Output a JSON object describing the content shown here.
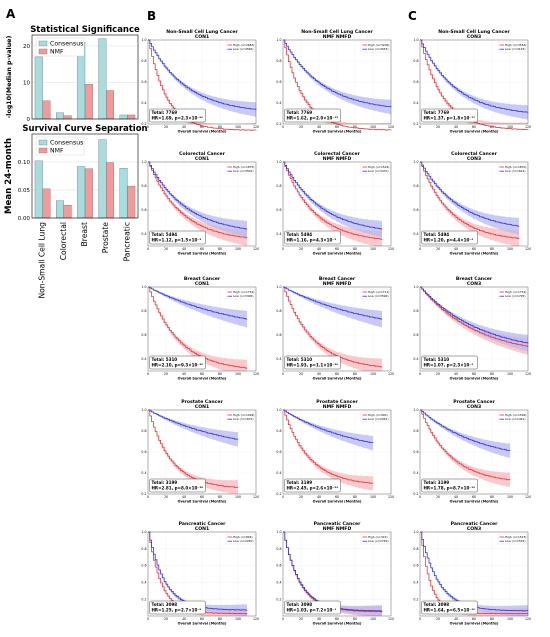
{
  "panel_letters": [
    "A",
    "B",
    "C"
  ],
  "colors": {
    "consensus": "#a8dde0",
    "nmf": "#f29a9a",
    "high": "#e8303a",
    "low": "#2a2fd6",
    "high_band": "#f7b7ba",
    "low_band": "#b6b8f2"
  },
  "chart_data": [
    {
      "type": "bar",
      "title": "Statistical Significance",
      "ylabel": "-log10(Median p-value)",
      "categories": [
        "Non-Small Cell Lung",
        "Colorectal",
        "Breast",
        "Prostate",
        "Pancreatic"
      ],
      "series": [
        {
          "name": "Consensus",
          "values": [
            17,
            1.7,
            21,
            22,
            1.1
          ]
        },
        {
          "name": "NMF",
          "values": [
            5,
            0.9,
            9.5,
            7.8,
            1.1
          ]
        }
      ],
      "ylim": [
        0,
        23
      ],
      "yticks": [
        "0",
        "10",
        "20"
      ],
      "legend": "top-center",
      "grid": true
    },
    {
      "type": "bar",
      "title": "Survival Curve Separation",
      "ylabel": "Mean 24-month",
      "categories": [
        "Non-Small Cell Lung",
        "Colorectal",
        "Breast",
        "Prostate",
        "Pancreatic"
      ],
      "series": [
        {
          "name": "Consensus",
          "values": [
            0.102,
            0.031,
            0.092,
            0.14,
            0.089
          ]
        },
        {
          "name": "NMF",
          "values": [
            0.052,
            0.023,
            0.088,
            0.099,
            0.057
          ]
        }
      ],
      "ylim": [
        0,
        0.15
      ],
      "yticks": [
        "0.00",
        "0.05",
        "0.10"
      ],
      "legend": "top-center",
      "grid": true
    },
    {
      "type": "line",
      "subtype": "kaplan-meier-grid",
      "xlabel": "Overall Survival (Months)",
      "xlim": [
        0,
        120
      ],
      "xticks": [
        "0",
        "20",
        "40",
        "60",
        "80",
        "100",
        "120"
      ],
      "yticks": [
        "0.2",
        "0.4",
        "0.6",
        "0.8",
        "1.0"
      ],
      "series_names": [
        "High",
        "Low"
      ],
      "panels": [
        {
          "col": "B1",
          "cancer": "Non-Small Cell Lung Cancer",
          "cond": "CON1",
          "leg_high": "High (n=2683)",
          "leg_low": "Low (n=4566)",
          "total": "Total: 7769",
          "hr": "HR=1.69, p=2.3×10⁻⁵⁰",
          "xmax": 120,
          "ymin": 0.2,
          "high_end": 0.14,
          "low_end": 0.3,
          "high_k": 0.05,
          "low_k": 0.024
        },
        {
          "col": "B2",
          "cancer": "Non-Small Cell Lung Cancer",
          "cond": "NMF NMFD",
          "leg_high": "High (n=3206)",
          "leg_low": "Low (n=4563)",
          "total": "Total: 7769",
          "hr": "HR=1.62, p=2.0×10⁻¹²",
          "xmax": 120,
          "ymin": 0.2,
          "high_end": 0.14,
          "low_end": 0.32,
          "high_k": 0.045,
          "low_k": 0.023
        },
        {
          "col": "C",
          "cancer": "Non-Small Cell Lung Cancer",
          "cond": "CON3",
          "leg_high": "High (n=3564)",
          "leg_low": "Low (n=4145)",
          "total": "Total: 7769",
          "hr": "HR=1.37, p=1.8×10⁻¹⁷",
          "xmax": 120,
          "ymin": 0.2,
          "high_end": 0.14,
          "low_end": 0.28,
          "high_k": 0.04,
          "low_k": 0.026
        },
        {
          "col": "B1",
          "cancer": "Colorectal Cancer",
          "cond": "CON1",
          "leg_high": "High (n=1875)",
          "leg_low": "Low (n=3502)",
          "total": "Total: 5494",
          "hr": "HR=1.12, p=1.5×10⁻²",
          "xmax": 110,
          "ymin": 0.3,
          "high_end": 0.34,
          "low_end": 0.4,
          "high_k": 0.028,
          "low_k": 0.024
        },
        {
          "col": "B2",
          "cancer": "Colorectal Cancer",
          "cond": "NMF NMFD",
          "leg_high": "High (n=1524)",
          "leg_low": "Low (n=3470)",
          "total": "Total: 5494",
          "hr": "HR=1.16, p=4.3×10⁻³",
          "xmax": 110,
          "ymin": 0.3,
          "high_end": 0.33,
          "low_end": 0.4,
          "high_k": 0.029,
          "low_k": 0.024
        },
        {
          "col": "C",
          "cancer": "Colorectal Cancer",
          "cond": "CON3",
          "leg_high": "High (n=1870)",
          "leg_low": "Low (n=1624)",
          "total": "Total: 5494",
          "hr": "HR=1.20, p=4.4×10⁻⁴",
          "xmax": 110,
          "ymin": 0.3,
          "high_end": 0.34,
          "low_end": 0.42,
          "high_k": 0.03,
          "low_k": 0.023
        },
        {
          "col": "B1",
          "cancer": "Breast Cancer",
          "cond": "CON1",
          "leg_high": "High (n=1752)",
          "leg_low": "Low (n=3306)",
          "total": "Total: 5310",
          "hr": "HR=2.10, p=9.3×10⁻³⁰",
          "xmax": 110,
          "ymin": 0.3,
          "high_end": 0.3,
          "low_end": 0.6,
          "high_k": 0.03,
          "low_k": 0.01
        },
        {
          "col": "B2",
          "cancer": "Breast Cancer",
          "cond": "NMF NMFD",
          "leg_high": "High (n=1711)",
          "leg_low": "Low (n=3596)",
          "total": "Total: 5310",
          "hr": "HR=1.93, p=1.1×10⁻²⁶",
          "xmax": 110,
          "ymin": 0.3,
          "high_end": 0.31,
          "low_end": 0.6,
          "high_k": 0.03,
          "low_k": 0.01
        },
        {
          "col": "C",
          "cancer": "Breast Cancer",
          "cond": "CON3",
          "leg_high": "High (n=1752)",
          "leg_low": "Low (n=1795)",
          "total": "Total: 5310",
          "hr": "HR=1.07, p=2.3×10⁻¹",
          "xmax": 120,
          "ymin": 0.3,
          "high_end": 0.42,
          "low_end": 0.44,
          "high_k": 0.016,
          "low_k": 0.015
        },
        {
          "col": "B1",
          "cancer": "Prostate Cancer",
          "cond": "CON1",
          "leg_high": "High (n=1099)",
          "leg_low": "Low (n=1676)",
          "total": "Total: 3199",
          "hr": "HR=2.81, p=8.0×10⁻³⁸",
          "xmax": 100,
          "ymin": 0.2,
          "high_end": 0.25,
          "low_end": 0.58,
          "high_k": 0.04,
          "low_k": 0.011
        },
        {
          "col": "B2",
          "cancer": "Prostate Cancer",
          "cond": "NMF NMFD",
          "leg_high": "High (n=900)",
          "leg_low": "Low (n=2061)",
          "total": "Total: 3199",
          "hr": "HR=2.45, p=2.6×10⁻³⁴",
          "xmax": 100,
          "ymin": 0.2,
          "high_end": 0.28,
          "low_end": 0.55,
          "high_k": 0.035,
          "low_k": 0.012
        },
        {
          "col": "C",
          "cancer": "Prostate Cancer",
          "cond": "CON3",
          "leg_high": "High (n=1599)",
          "leg_low": "Low (n=1461)",
          "total": "Total: 3199",
          "hr": "HR=1.78, p=8.7×10⁻¹⁵",
          "xmax": 100,
          "ymin": 0.2,
          "high_end": 0.3,
          "low_end": 0.5,
          "high_k": 0.03,
          "low_k": 0.015
        },
        {
          "col": "B1",
          "cancer": "Pancreatic Cancer",
          "cond": "CON1",
          "leg_high": "High (n=846)",
          "leg_low": "Low (n=2250)",
          "total": "Total: 3098",
          "hr": "HR=1.25, p=2.7×10⁻⁵",
          "xmax": 110,
          "ymin": 0.0,
          "high_end": 0.03,
          "low_end": 0.07,
          "high_k": 0.07,
          "low_k": 0.055
        },
        {
          "col": "B2",
          "cancer": "Pancreatic Cancer",
          "cond": "NMF NMFD",
          "leg_high": "High (n=343)",
          "leg_low": "Low (n=2749)",
          "total": "Total: 3098",
          "hr": "HR=1.03, p=7.2×10⁻¹",
          "xmax": 110,
          "ymin": 0.0,
          "high_end": 0.05,
          "low_end": 0.06,
          "high_k": 0.055,
          "low_k": 0.055
        },
        {
          "col": "C",
          "cancer": "Pancreatic Cancer",
          "cond": "CON3",
          "leg_high": "High (n=1523)",
          "leg_low": "Low (n=1535)",
          "total": "Total: 3098",
          "hr": "HR=1.64, p=6.5×10⁻¹⁰",
          "xmax": 120,
          "ymin": 0.0,
          "high_end": 0.03,
          "low_end": 0.06,
          "high_k": 0.09,
          "low_k": 0.05
        }
      ]
    }
  ]
}
